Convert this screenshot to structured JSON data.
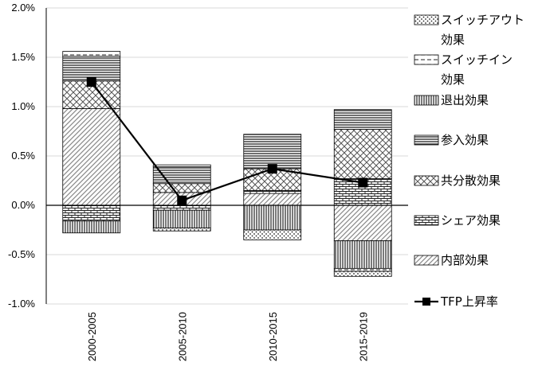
{
  "chart_data": {
    "type": "bar",
    "stacked": true,
    "title": "",
    "xlabel": "",
    "ylabel": "",
    "categories": [
      "2000-2005",
      "2005-2010",
      "2010-2015",
      "2015-2019"
    ],
    "ylim": [
      -0.01,
      0.02
    ],
    "yticks": [
      0.02,
      0.015,
      0.01,
      0.005,
      0.0,
      -0.005,
      -0.01
    ],
    "ytick_labels": [
      "2.0%",
      "1.5%",
      "1.0%",
      "0.5%",
      "0.0%",
      "-0.5%",
      "-1.0%"
    ],
    "grid": true,
    "legend_position": "right",
    "series": [
      {
        "name": "スイッチアウト効果",
        "key": "switchout",
        "pattern": "dots",
        "values": [
          0.0,
          -0.0003,
          -0.001,
          -0.0005
        ]
      },
      {
        "name": "スイッチイン効果",
        "key": "switchin",
        "pattern": "dash",
        "values": [
          0.0005,
          0.0002,
          0.0,
          -0.0003
        ]
      },
      {
        "name": "退出効果",
        "key": "exit",
        "pattern": "vlines",
        "values": [
          -0.0012,
          -0.0018,
          -0.0025,
          -0.0028
        ]
      },
      {
        "name": "参入効果",
        "key": "entry",
        "pattern": "hlines",
        "values": [
          0.0025,
          0.0017,
          0.0035,
          0.002
        ]
      },
      {
        "name": "共分散効果",
        "key": "cov",
        "pattern": "cross",
        "values": [
          0.0028,
          0.0009,
          0.0022,
          0.005
        ]
      },
      {
        "name": "シェア効果",
        "key": "share",
        "pattern": "brick",
        "values": [
          -0.0016,
          -0.0005,
          0.0003,
          0.0027
        ]
      },
      {
        "name": "内部効果",
        "key": "within",
        "pattern": "diag",
        "values": [
          0.0098,
          0.0013,
          0.0012,
          -0.0036
        ]
      }
    ],
    "line": {
      "name": "TFP上昇率",
      "values": [
        0.0125,
        0.0005,
        0.0037,
        0.0023
      ]
    },
    "legend": [
      {
        "key": "switchout",
        "label": "スイッチアウト",
        "label2": "効果"
      },
      {
        "key": "switchin",
        "label": "スイッチイン",
        "label2": "効果"
      },
      {
        "key": "exit",
        "label": "退出効果"
      },
      {
        "key": "entry",
        "label": "参入効果"
      },
      {
        "key": "cov",
        "label": "共分散効果"
      },
      {
        "key": "share",
        "label": "シェア効果"
      },
      {
        "key": "within",
        "label": "内部効果"
      },
      {
        "key": "line",
        "label": "TFP上昇率"
      }
    ],
    "stack_order_positive": [
      "within",
      "share",
      "cov",
      "entry",
      "exit",
      "switchin",
      "switchout"
    ],
    "stack_order_negative": [
      "share",
      "within",
      "exit",
      "switchin",
      "switchout"
    ]
  }
}
